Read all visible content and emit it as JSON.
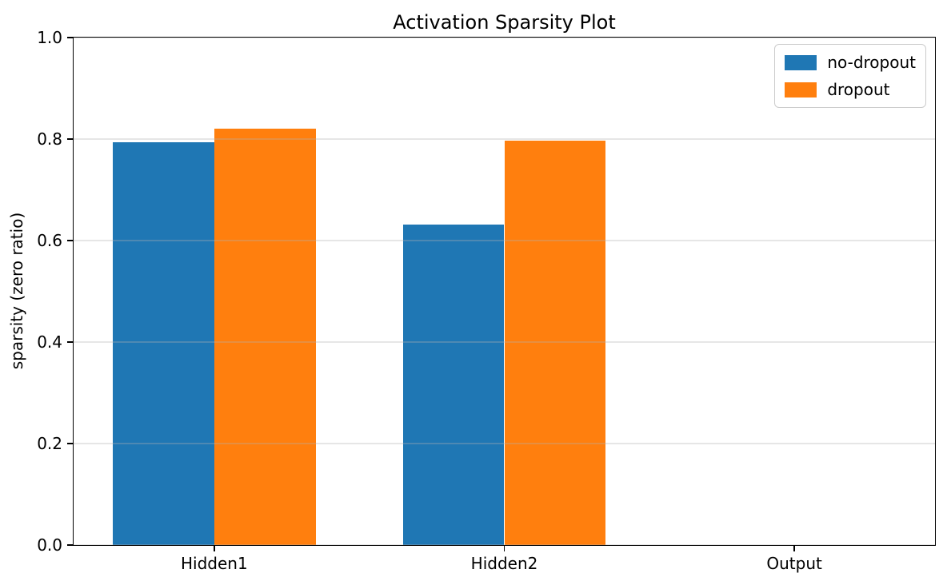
{
  "chart_data": {
    "type": "bar",
    "title": "Activation Sparsity Plot",
    "xlabel": "",
    "ylabel": "sparsity (zero ratio)",
    "categories": [
      "Hidden1",
      "Hidden2",
      "Output"
    ],
    "series": [
      {
        "name": "no-dropout",
        "color": "#1f77b4",
        "values": [
          0.794,
          0.631,
          0.0
        ]
      },
      {
        "name": "dropout",
        "color": "#ff7f0e",
        "values": [
          0.821,
          0.797,
          0.0
        ]
      }
    ],
    "ylim": [
      0.0,
      1.0
    ],
    "yticks": [
      0.0,
      0.2,
      0.4,
      0.6,
      0.8,
      1.0
    ],
    "ytick_labels": [
      "0.0",
      "0.2",
      "0.4",
      "0.6",
      "0.8",
      "1.0"
    ],
    "xlim": [
      -0.485,
      2.485
    ],
    "bar_width": 0.35,
    "grid": "y",
    "grid_color": "#b0b0b0",
    "legend_position": "upper right",
    "background": "#ffffff",
    "spine_color": "#000000"
  }
}
